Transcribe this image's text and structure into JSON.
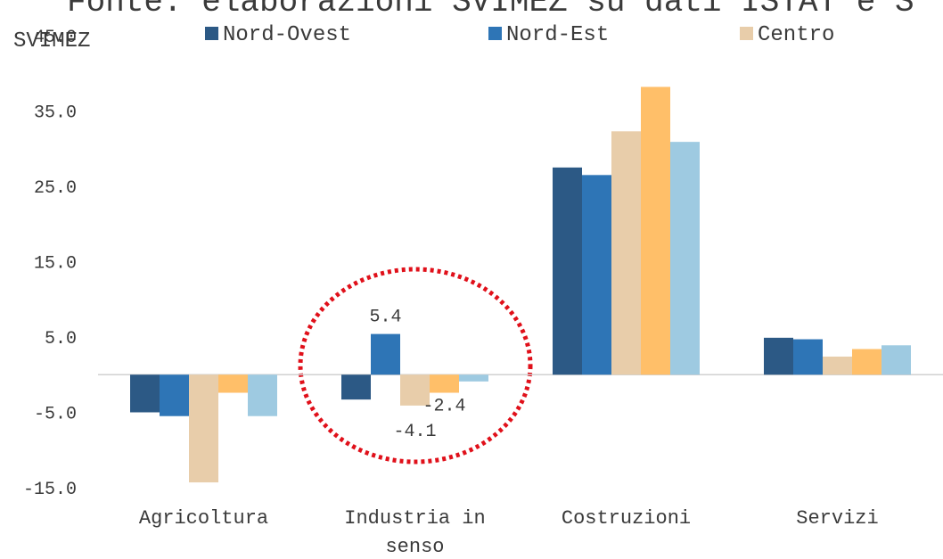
{
  "chart_data": {
    "type": "bar",
    "title": "Fonte: elaborazioni SVIMEZ su dati ISTAT e S",
    "subtitle": "SVIMEZ",
    "categories": [
      "Agricoltura",
      "Industria in senso stretto",
      "Costruzioni",
      "Servizi"
    ],
    "series": [
      {
        "name": "Nord-Ovest",
        "color": "#2c5985",
        "values": [
          -5.0,
          -3.3,
          27.5,
          4.9
        ]
      },
      {
        "name": "Nord-Est",
        "color": "#2e75b6",
        "values": [
          -5.5,
          5.4,
          26.5,
          4.7
        ],
        "value_labels": [
          null,
          "5.4",
          null,
          null
        ]
      },
      {
        "name": "Centro",
        "color": "#e8cdaa",
        "values": [
          -14.3,
          -4.1,
          32.3,
          2.4
        ],
        "value_labels": [
          null,
          "-4.1",
          null,
          null
        ]
      },
      {
        "color": "#ffbf69",
        "values": [
          -2.4,
          -2.4,
          38.2,
          3.4
        ],
        "value_labels": [
          null,
          "-2.4",
          null,
          null
        ]
      },
      {
        "color": "#9ecae1",
        "values": [
          -5.5,
          -0.9,
          30.9,
          3.9
        ]
      }
    ],
    "ylim": [
      -15,
      45
    ],
    "yticks": [
      {
        "value": -15,
        "label": "-15.0"
      },
      {
        "value": -5,
        "label": "-5.0"
      },
      {
        "value": 5,
        "label": "5.0"
      },
      {
        "value": 15,
        "label": "15.0"
      },
      {
        "value": 25,
        "label": "25.0"
      },
      {
        "value": 35,
        "label": "35.0"
      },
      {
        "value": 45,
        "label": "45.0"
      }
    ],
    "grid": false
  }
}
